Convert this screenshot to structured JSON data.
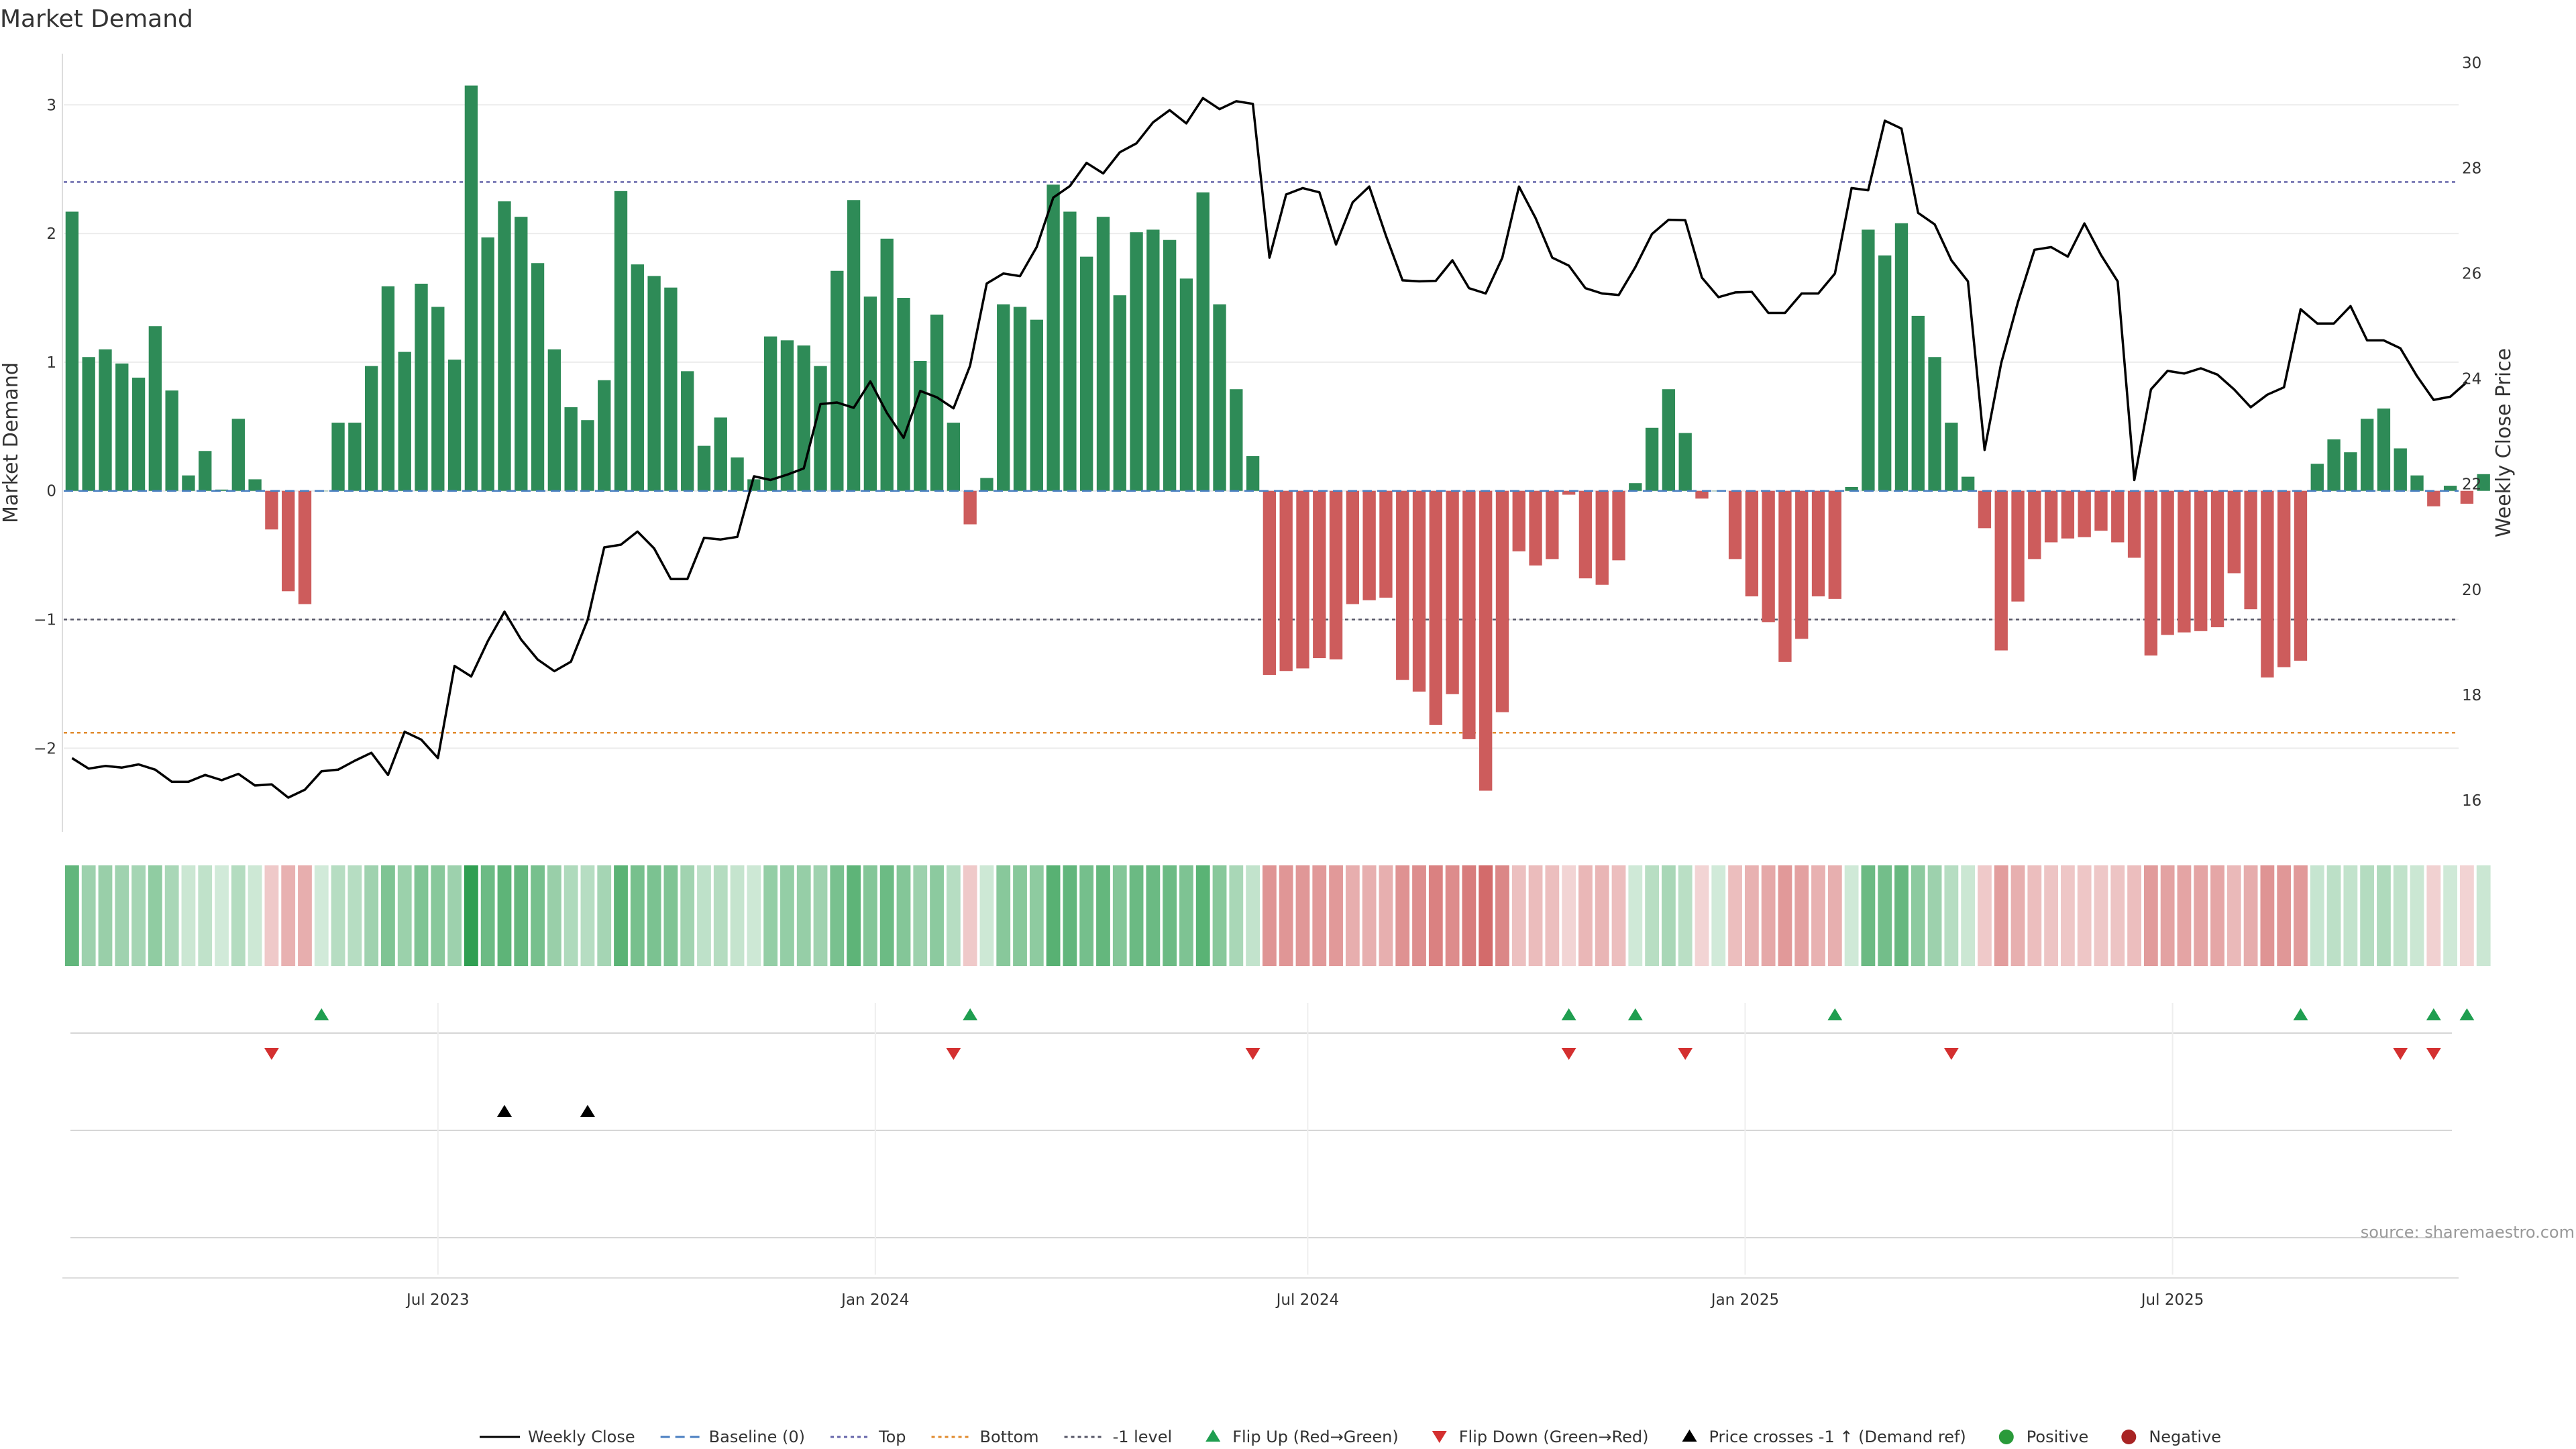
{
  "chart_data": {
    "type": "bar",
    "title": "Market Demand",
    "ylabel_left": "Market Demand",
    "ylabel_right": "Weekly Close Price",
    "ylim_left": [
      -2.65,
      3.45
    ],
    "ylim_right": [
      15.4,
      30.3
    ],
    "yticks_left": [
      {
        "v": 3,
        "label": "3"
      },
      {
        "v": 2,
        "label": "2"
      },
      {
        "v": 1,
        "label": "1"
      },
      {
        "v": 0,
        "label": "0"
      },
      {
        "v": -1,
        "label": "−1"
      },
      {
        "v": -2,
        "label": "−2"
      }
    ],
    "yticks_right": [
      {
        "v": 30,
        "label": "30"
      },
      {
        "v": 28,
        "label": "28"
      },
      {
        "v": 26,
        "label": "26"
      },
      {
        "v": 24,
        "label": "24"
      },
      {
        "v": 22,
        "label": "22"
      },
      {
        "v": 20,
        "label": "20"
      },
      {
        "v": 18,
        "label": "18"
      },
      {
        "v": 16,
        "label": "16"
      }
    ],
    "xlim_weeks": [
      -0.5,
      143.5
    ],
    "xticks": [
      {
        "week": 22,
        "label": "Jul 2023"
      },
      {
        "week": 48.3,
        "label": "Jan 2024"
      },
      {
        "week": 74.3,
        "label": "Jul 2024"
      },
      {
        "week": 100.6,
        "label": "Jan 2025"
      },
      {
        "week": 126.3,
        "label": "Jul 2025"
      }
    ],
    "reference_lines": [
      {
        "name": "Top",
        "value": 2.4,
        "color": "#6666aa",
        "style": "dotted"
      },
      {
        "name": "-1 level",
        "value": -1.0,
        "color": "#555566",
        "style": "dotted"
      },
      {
        "name": "Bottom",
        "value": -1.88,
        "color": "#e08a2c",
        "style": "dotted"
      },
      {
        "name": "Baseline (0)",
        "value": 0,
        "color": "#4a7fc1",
        "style": "dashed"
      }
    ],
    "demand": [
      2.17,
      1.04,
      1.1,
      0.99,
      0.88,
      1.28,
      0.78,
      0.12,
      0.31,
      0.01,
      0.56,
      0.09,
      -0.3,
      -0.78,
      -0.88,
      0.0,
      0.53,
      0.53,
      0.97,
      1.59,
      1.08,
      1.61,
      1.43,
      1.02,
      3.15,
      1.97,
      2.25,
      2.13,
      1.77,
      1.1,
      0.65,
      0.55,
      0.86,
      2.33,
      1.76,
      1.67,
      1.58,
      0.93,
      0.35,
      0.57,
      0.26,
      0.09,
      1.2,
      1.17,
      1.13,
      0.97,
      1.71,
      2.26,
      1.51,
      1.96,
      1.5,
      1.01,
      1.37,
      0.53,
      -0.26,
      0.1,
      1.45,
      1.43,
      1.33,
      2.38,
      2.17,
      1.82,
      2.13,
      1.52,
      2.01,
      2.03,
      1.95,
      1.65,
      2.32,
      1.45,
      0.79,
      0.27,
      -1.43,
      -1.4,
      -1.38,
      -1.3,
      -1.31,
      -0.88,
      -0.85,
      -0.83,
      -1.47,
      -1.56,
      -1.82,
      -1.58,
      -1.93,
      -2.33,
      -1.72,
      -0.47,
      -0.58,
      -0.53,
      -0.03,
      -0.68,
      -0.73,
      -0.54,
      0.06,
      0.49,
      0.79,
      0.45,
      -0.06,
      0.0,
      -0.53,
      -0.82,
      -1.02,
      -1.33,
      -1.15,
      -0.82,
      -0.84,
      0.03,
      2.03,
      1.83,
      2.08,
      1.36,
      1.04,
      0.53,
      0.11,
      -0.29,
      -1.24,
      -0.86,
      -0.53,
      -0.4,
      -0.37,
      -0.36,
      -0.31,
      -0.4,
      -0.52,
      -1.28,
      -1.12,
      -1.1,
      -1.09,
      -1.06,
      -0.64,
      -0.92,
      -1.45,
      -1.37,
      -1.32,
      0.21,
      0.4,
      0.3,
      0.56,
      0.64,
      0.33,
      0.12,
      -0.12,
      0.04,
      -0.1,
      0.13
    ],
    "weekly_close": [
      16.8,
      16.6,
      16.65,
      16.62,
      16.68,
      16.58,
      16.35,
      16.35,
      16.48,
      16.38,
      16.5,
      16.28,
      16.3,
      16.05,
      16.2,
      16.55,
      16.58,
      16.75,
      16.9,
      16.48,
      17.3,
      17.15,
      16.8,
      18.55,
      18.35,
      19.02,
      19.58,
      19.05,
      18.67,
      18.45,
      18.63,
      19.42,
      20.8,
      20.85,
      21.1,
      20.78,
      20.2,
      20.2,
      20.98,
      20.95,
      21.0,
      22.15,
      22.08,
      22.18,
      22.3,
      23.52,
      23.55,
      23.45,
      23.95,
      23.35,
      22.88,
      23.77,
      23.65,
      23.44,
      24.25,
      25.81,
      26.0,
      25.95,
      26.5,
      27.44,
      27.66,
      28.1,
      27.9,
      28.3,
      28.47,
      28.87,
      29.1,
      28.85,
      29.33,
      29.12,
      29.27,
      29.22,
      26.3,
      27.5,
      27.62,
      27.54,
      26.55,
      27.35,
      27.65,
      26.72,
      25.87,
      25.85,
      25.86,
      26.25,
      25.72,
      25.62,
      26.3,
      27.65,
      27.05,
      26.3,
      26.15,
      25.72,
      25.62,
      25.59,
      26.12,
      26.75,
      27.02,
      27.01,
      25.92,
      25.55,
      25.64,
      25.65,
      25.25,
      25.25,
      25.62,
      25.62,
      26.0,
      27.62,
      27.58,
      28.9,
      28.75,
      27.15,
      26.93,
      26.25,
      25.85,
      22.65,
      24.3,
      25.45,
      26.45,
      26.5,
      26.32,
      26.95,
      26.35,
      25.85,
      22.08,
      23.8,
      24.15,
      24.1,
      24.2,
      24.08,
      23.8,
      23.46,
      23.7,
      23.84,
      25.32,
      25.05,
      25.05,
      25.38,
      24.73,
      24.73,
      24.58,
      24.05,
      23.6,
      23.66,
      23.94
    ],
    "events": {
      "flip_up_weeks": [
        15,
        54,
        90,
        94,
        106,
        134,
        142,
        144
      ],
      "flip_down_weeks": [
        12,
        53,
        71,
        90,
        97,
        113,
        140,
        142
      ],
      "price_cross_weeks": [
        26,
        31
      ]
    },
    "legend": [
      {
        "label": "Weekly Close",
        "kind": "line",
        "color": "#000000"
      },
      {
        "label": "Baseline (0)",
        "kind": "dashed",
        "color": "#4a7fc1"
      },
      {
        "label": "Top",
        "kind": "dotted",
        "color": "#6666aa"
      },
      {
        "label": "Bottom",
        "kind": "dotted",
        "color": "#e08a2c"
      },
      {
        "label": "-1 level",
        "kind": "dotted",
        "color": "#555566"
      },
      {
        "label": "Flip Up (Red→Green)",
        "kind": "tri-up",
        "color": "#1f9e50"
      },
      {
        "label": "Flip Down (Green→Red)",
        "kind": "tri-down",
        "color": "#d43030"
      },
      {
        "label": "Price crosses -1 ↑ (Demand ref)",
        "kind": "tri-up",
        "color": "#000000"
      },
      {
        "label": "Positive",
        "kind": "dot",
        "color": "#2a9a3a"
      },
      {
        "label": "Negative",
        "kind": "dot",
        "color": "#a82424"
      }
    ],
    "source": "source: sharemaestro.com",
    "colors": {
      "positive_bar": "#2e8b57",
      "negative_bar": "#cd5c5c",
      "price_line": "#000000"
    }
  }
}
